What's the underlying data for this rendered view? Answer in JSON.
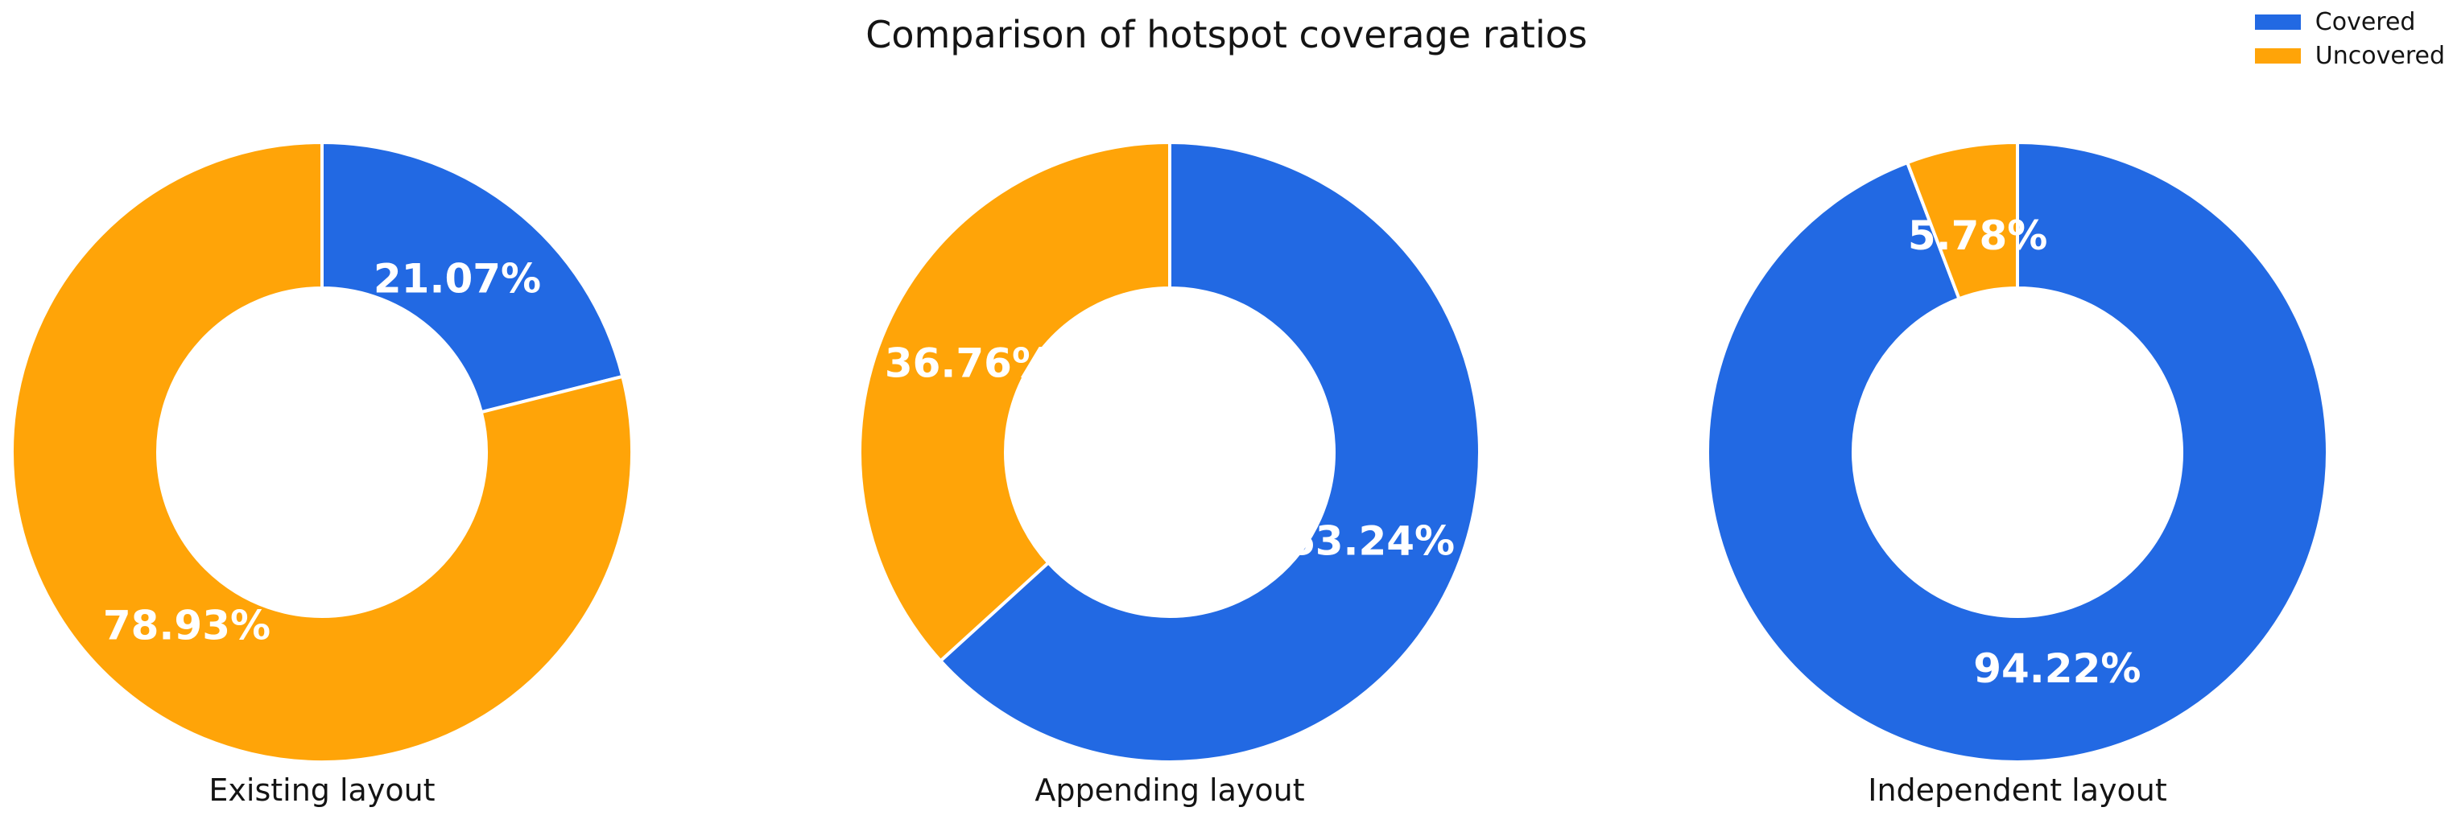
{
  "chart_data": {
    "type": "pie",
    "variant": "donut",
    "title": "Comparison of hotspot coverage ratios",
    "legend_position": "top-right",
    "start_angle": "top",
    "direction": "clockwise",
    "hole_ratio": 0.53,
    "grid": false,
    "series": [
      {
        "name": "Covered",
        "color": "#2269e3"
      },
      {
        "name": "Uncovered",
        "color": "#ffa408"
      }
    ],
    "value_label_color": "#ffffff",
    "value_suffix": "%",
    "charts": [
      {
        "label": "Existing layout",
        "values": [
          21.07,
          78.93
        ],
        "value_labels": [
          "21.07%",
          "78.93%"
        ]
      },
      {
        "label": "Appending layout",
        "values": [
          63.24,
          36.76
        ],
        "value_labels": [
          "63.24%",
          "36.76%"
        ]
      },
      {
        "label": "Independent layout",
        "values": [
          94.22,
          5.78
        ],
        "value_labels": [
          "94.22%",
          "5.78%"
        ]
      }
    ]
  }
}
